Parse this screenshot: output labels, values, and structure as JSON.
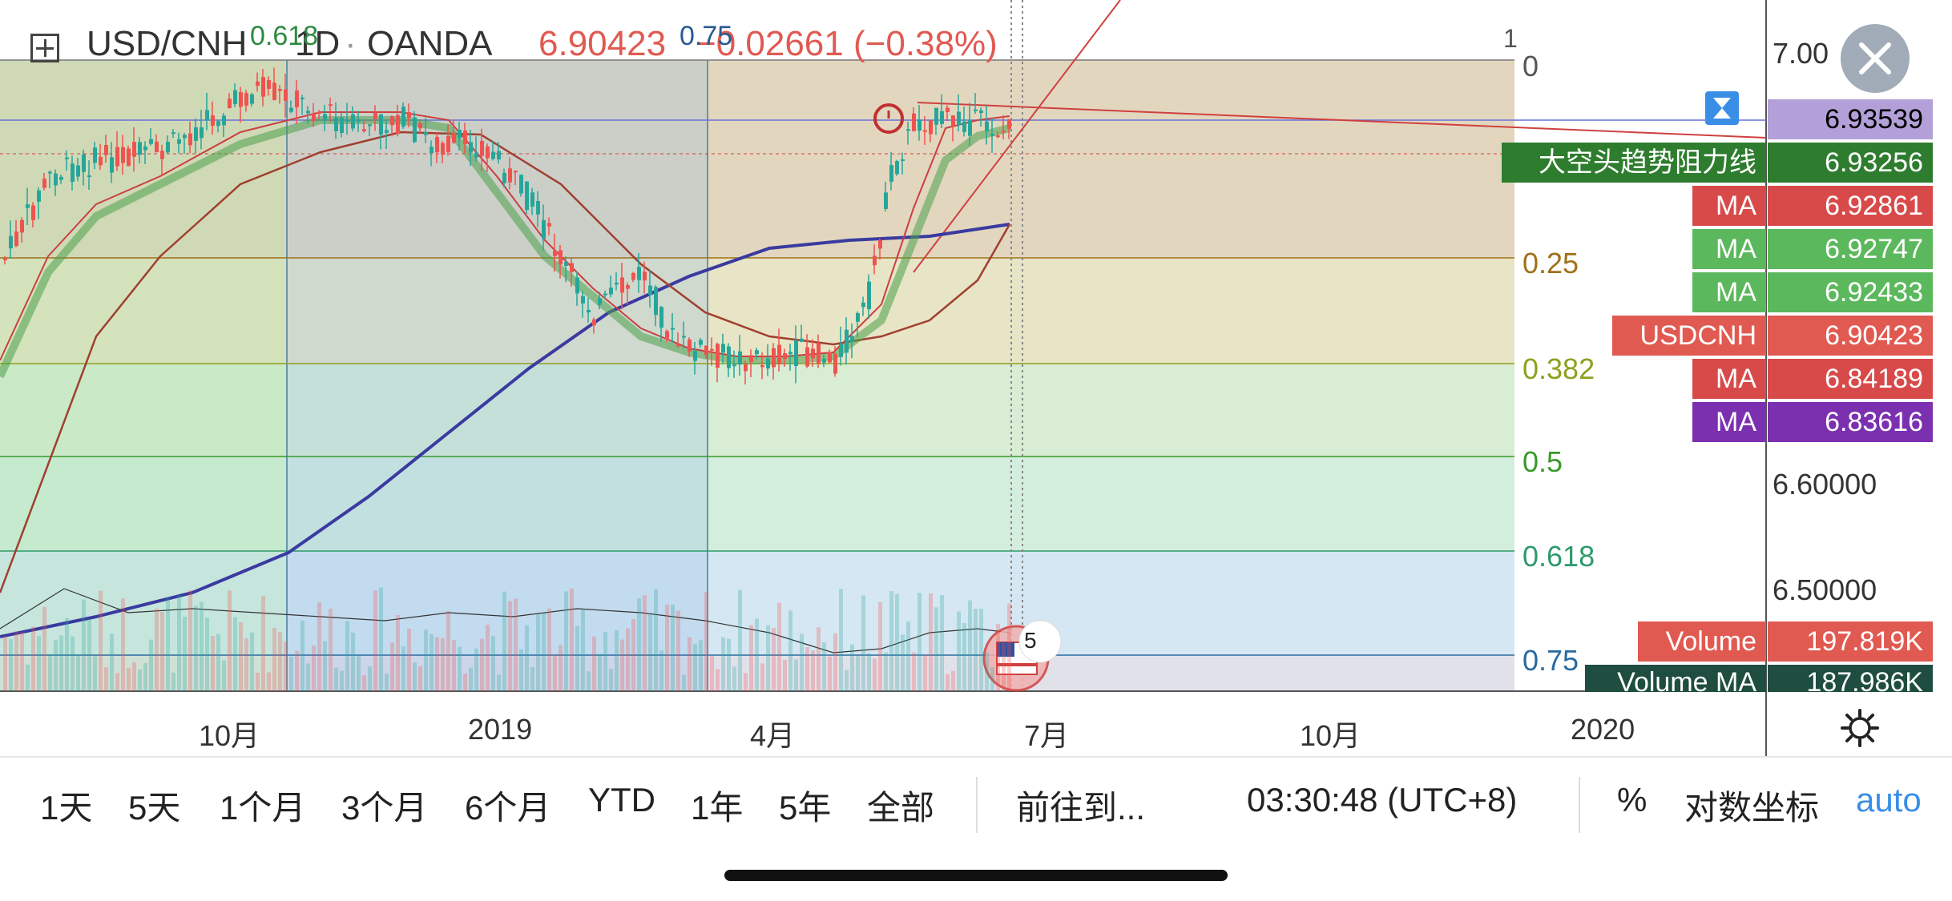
{
  "header": {
    "symbol": "USD/CNH",
    "interval": "1D",
    "separator": "·",
    "exchange": "OANDA",
    "last_price": "6.90423",
    "change": "−0.02661 (−0.38%)",
    "overlay_top_labels": [
      "0.618",
      "0.75",
      "1"
    ]
  },
  "price_axis": {
    "labels": [
      "7.00",
      "6.60000",
      "6.50000"
    ],
    "tags": [
      {
        "label": "",
        "value": "6.93539",
        "color": "#b3a0d8",
        "text_color": "#000000"
      },
      {
        "label": "大空头趋势阻力线",
        "value": "6.93256",
        "color": "#2e7d2e",
        "text_color": "#ffffff"
      },
      {
        "label": "MA",
        "value": "6.92861",
        "color": "#d84a4a",
        "text_color": "#ffffff"
      },
      {
        "label": "MA",
        "value": "6.92747",
        "color": "#5cb85c",
        "text_color": "#ffffff"
      },
      {
        "label": "MA",
        "value": "6.92433",
        "color": "#5cb85c",
        "text_color": "#ffffff"
      },
      {
        "label": "USDCNH",
        "value": "6.90423",
        "color": "#e05a52",
        "text_color": "#ffffff"
      },
      {
        "label": "MA",
        "value": "6.84189",
        "color": "#d84a4a",
        "text_color": "#ffffff"
      },
      {
        "label": "MA",
        "value": "6.83616",
        "color": "#7b30b0",
        "text_color": "#ffffff"
      },
      {
        "label": "Volume",
        "value": "197.819K",
        "color": "#e05a52",
        "text_color": "#ffffff"
      },
      {
        "label": "Volume MA",
        "value": "187.986K",
        "color": "#1f4d3f",
        "text_color": "#ffffff"
      }
    ]
  },
  "fib_levels": [
    {
      "label": "0",
      "color": "#555555"
    },
    {
      "label": "0.25",
      "color": "#a0701a"
    },
    {
      "label": "0.382",
      "color": "#8fa020"
    },
    {
      "label": "0.5",
      "color": "#3a9a2a"
    },
    {
      "label": "0.618",
      "color": "#2e9a6a"
    },
    {
      "label": "0.75",
      "color": "#2a6aa0"
    }
  ],
  "time_axis": {
    "labels": [
      "10月",
      "2019",
      "4月",
      "7月",
      "10月",
      "2020"
    ]
  },
  "event_badge": {
    "count": "5"
  },
  "bottom_bar": {
    "ranges": [
      "1天",
      "5天",
      "1个月",
      "3个月",
      "6个月",
      "YTD",
      "1年",
      "5年",
      "全部"
    ],
    "goto": "前往到...",
    "clock": "03:30:48 (UTC+8)",
    "percent": "%",
    "log_scale": "对数坐标",
    "auto": "auto"
  },
  "colors": {
    "up": "#26a69a",
    "down": "#ef5350",
    "accent_blue": "#3a8ee6"
  },
  "chart_data": {
    "type": "candlestick",
    "series": [
      {
        "name": "USDCNH",
        "description": "daily candles"
      }
    ],
    "moving_averages_last": [
      6.92861,
      6.92747,
      6.92433,
      6.84189,
      6.83616
    ],
    "last_close": 6.90423
  }
}
